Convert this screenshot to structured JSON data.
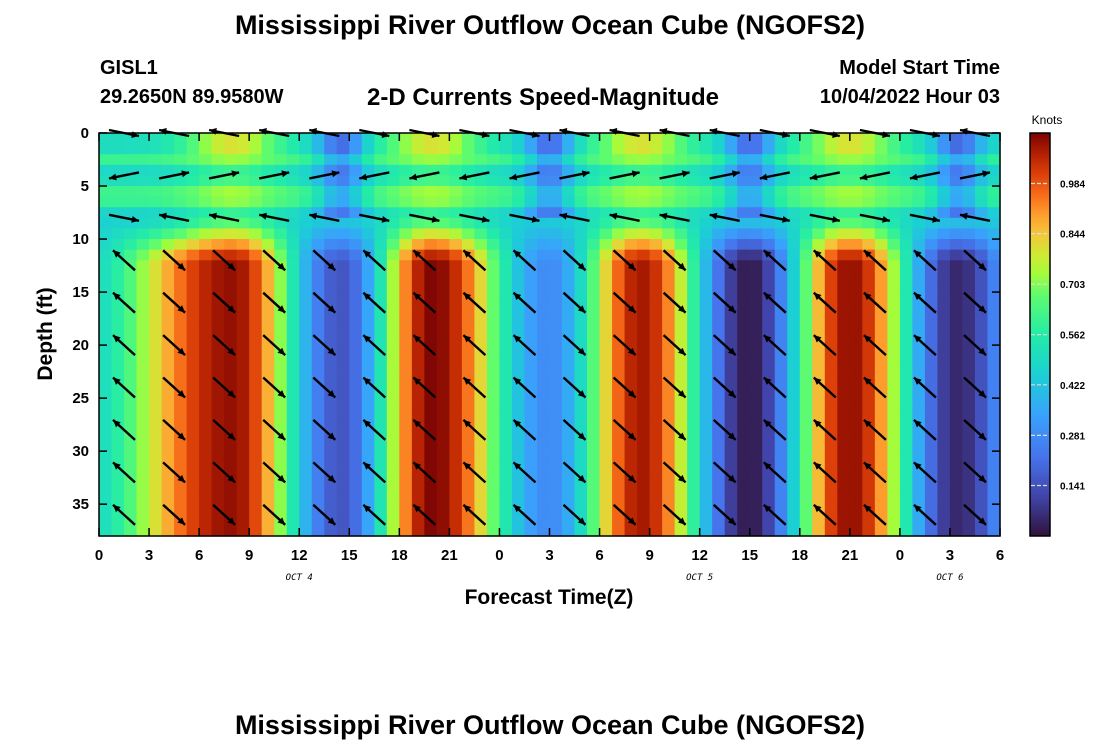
{
  "header": {
    "title": "Mississippi River Outflow Ocean Cube (NGOFS2)",
    "station": "GISL1",
    "coordinates": "29.2650N  89.9580W",
    "subtitle": "2-D Currents Speed-Magnitude",
    "model_start_label": "Model Start Time",
    "model_start_value": "10/04/2022 Hour 03"
  },
  "footer": {
    "title": "Mississippi River Outflow Ocean Cube (NGOFS2)"
  },
  "colors": {
    "low": "#30123b",
    "high": "#7a0403"
  },
  "chart_data": {
    "type": "heatmap",
    "xlabel": "Forecast Time(Z)",
    "ylabel": "Depth (ft)",
    "x_ticks": [
      "0",
      "3",
      "6",
      "9",
      "12",
      "15",
      "18",
      "21",
      "0",
      "3",
      "6",
      "9",
      "12",
      "15",
      "18",
      "21",
      "0",
      "3",
      "6"
    ],
    "x_range_hours": [
      0,
      54
    ],
    "date_labels": [
      {
        "label": "OCT 4",
        "hour": 12
      },
      {
        "label": "OCT 5",
        "hour": 36
      },
      {
        "label": "OCT 6",
        "hour": 51
      }
    ],
    "y_ticks": [
      0,
      5,
      10,
      15,
      20,
      25,
      30,
      35
    ],
    "ylim": [
      0,
      38
    ],
    "y_inverted": true,
    "colorbar": {
      "label": "Knots",
      "ticks": [
        "0.141",
        "0.281",
        "0.422",
        "0.562",
        "0.703",
        "0.844",
        "0.984"
      ],
      "range": [
        0.0,
        1.125
      ],
      "colormap": "turbo"
    },
    "speed_peaks": [
      {
        "hour": 8.0,
        "speed": 1.1
      },
      {
        "hour": 20.0,
        "speed": 1.12
      },
      {
        "hour": 32.5,
        "speed": 1.08
      },
      {
        "hour": 45.0,
        "speed": 1.1
      }
    ],
    "speed_minima": [
      {
        "hour": 14.5,
        "speed": 0.15
      },
      {
        "hour": 27.0,
        "speed": 0.28
      },
      {
        "hour": 39.0,
        "speed": 0.02
      },
      {
        "hour": 51.5,
        "speed": 0.05
      }
    ],
    "vector_rows_ft": [
      0,
      4,
      8,
      12,
      16,
      20,
      24,
      28,
      32,
      36
    ],
    "vector_cols_hours": [
      1.5,
      4.5,
      7.5,
      10.5,
      13.5,
      16.5,
      19.5,
      22.5,
      25.5,
      28.5,
      31.5,
      34.5,
      37.5,
      40.5,
      43.5,
      46.5,
      49.5,
      52.5
    ]
  }
}
